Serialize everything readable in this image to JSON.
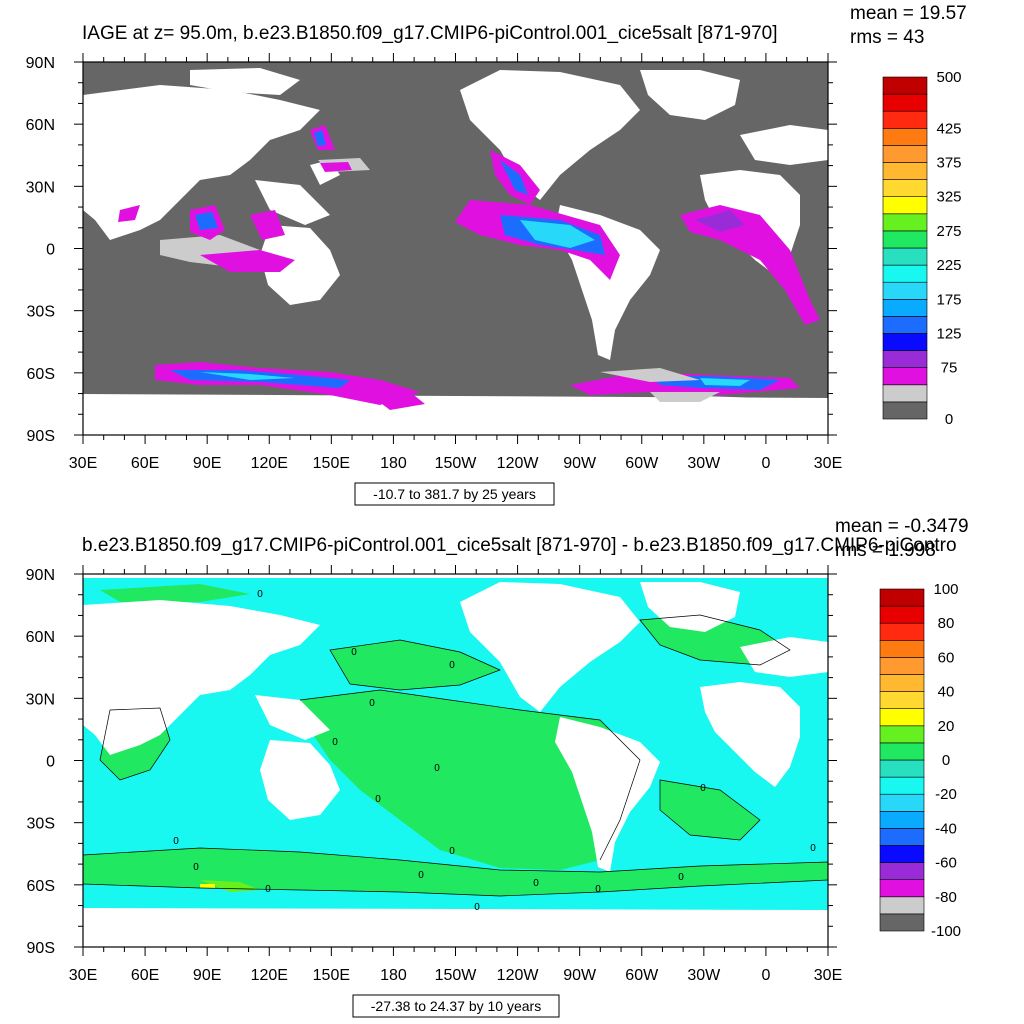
{
  "chart_data": [
    {
      "type": "heatmap",
      "title": "IAGE at z=  95.0m, b.e23.B1850.f09_g17.CMIP6-piControl.001_cice5salt [871-970]",
      "stats": {
        "mean": "mean = 19.57",
        "rms": "rms = 43"
      },
      "x_ticks": [
        "30E",
        "60E",
        "90E",
        "120E",
        "150E",
        "180",
        "150W",
        "120W",
        "90W",
        "60W",
        "30W",
        "0",
        "30E"
      ],
      "y_ticks": [
        "90N",
        "60N",
        "30N",
        "0",
        "30S",
        "60S",
        "90S"
      ],
      "contour_info": "-10.7 to 381.7 by 25 years",
      "colorbar": {
        "colors": [
          "#666666",
          "#cccccc",
          "#e010e0",
          "#9a2cd8",
          "#0a0aff",
          "#1c6cff",
          "#0aaaff",
          "#28d8f8",
          "#18f8f0",
          "#28e0c0",
          "#20e860",
          "#66f020",
          "#ffff00",
          "#ffd830",
          "#ffb830",
          "#ff9a30",
          "#ff7a10",
          "#ff2a10",
          "#e80000",
          "#c00000"
        ],
        "labels": [
          {
            "text": "0",
            "index": 0
          },
          {
            "text": "75",
            "index": 3
          },
          {
            "text": "125",
            "index": 5
          },
          {
            "text": "175",
            "index": 7
          },
          {
            "text": "225",
            "index": 9
          },
          {
            "text": "275",
            "index": 11
          },
          {
            "text": "325",
            "index": 13
          },
          {
            "text": "375",
            "index": 15
          },
          {
            "text": "425",
            "index": 17
          },
          {
            "text": "500",
            "index": 20
          }
        ]
      }
    },
    {
      "type": "heatmap",
      "title": "b.e23.B1850.f09_g17.CMIP6-piControl.001_cice5salt [871-970] - b.e23.B1850.f09_g17.CMIP6-piContro",
      "stats": {
        "mean": "mean = -0.3479",
        "rms": "rms = 1.998"
      },
      "x_ticks": [
        "30E",
        "60E",
        "90E",
        "120E",
        "150E",
        "180",
        "150W",
        "120W",
        "90W",
        "60W",
        "30W",
        "0",
        "30E"
      ],
      "y_ticks": [
        "90N",
        "60N",
        "30N",
        "0",
        "30S",
        "60S",
        "90S"
      ],
      "contour_info": "-27.38 to 24.37 by 10 years",
      "contour_labels": [
        "0",
        "0",
        "0",
        "0",
        "0",
        "0",
        "0",
        "0",
        "0",
        "0",
        "0",
        "0",
        "0",
        "0",
        "0",
        "0",
        "0",
        "0"
      ],
      "colorbar": {
        "colors": [
          "#666666",
          "#cccccc",
          "#e010e0",
          "#9a2cd8",
          "#0a0aff",
          "#1c6cff",
          "#0aaaff",
          "#28d8f8",
          "#18f8f0",
          "#28e0c0",
          "#20e860",
          "#66f020",
          "#ffff00",
          "#ffd830",
          "#ffb830",
          "#ff9a30",
          "#ff7a10",
          "#ff2a10",
          "#e80000",
          "#c00000"
        ],
        "labels": [
          {
            "text": "-100",
            "index": 0
          },
          {
            "text": "-80",
            "index": 2
          },
          {
            "text": "-60",
            "index": 4
          },
          {
            "text": "-40",
            "index": 6
          },
          {
            "text": "-20",
            "index": 8
          },
          {
            "text": "0",
            "index": 10
          },
          {
            "text": "20",
            "index": 12
          },
          {
            "text": "40",
            "index": 14
          },
          {
            "text": "60",
            "index": 16
          },
          {
            "text": "80",
            "index": 18
          },
          {
            "text": "100",
            "index": 20
          }
        ]
      }
    }
  ]
}
